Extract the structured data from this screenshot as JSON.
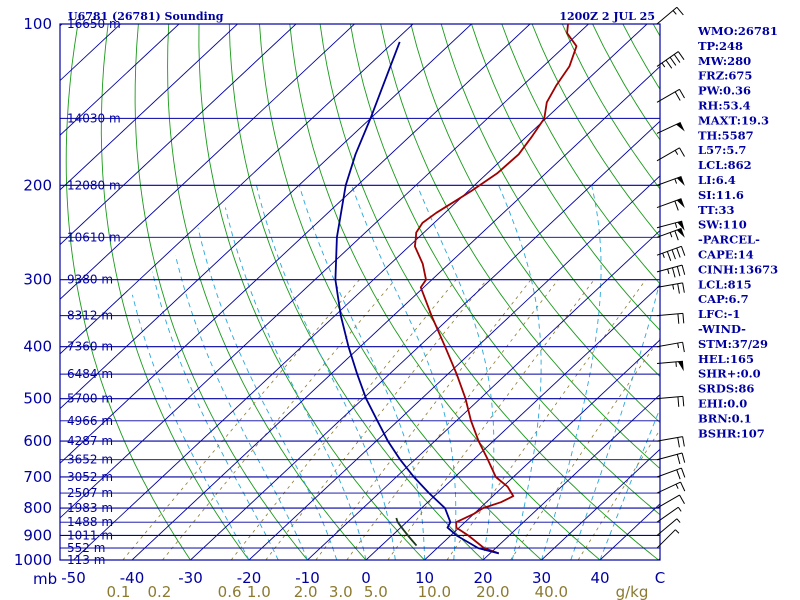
{
  "header": {
    "station": "U6781 (26781) Sounding",
    "time": "1200Z  2 JUL 25"
  },
  "chart_data": {
    "type": "line",
    "pressure_levels": [
      100,
      200,
      300,
      400,
      500,
      600,
      700,
      800,
      900,
      1000
    ],
    "pressure_labels": [
      "100",
      "200",
      "300",
      "400",
      "500",
      "600",
      "700",
      "800",
      "900",
      "1000"
    ],
    "pressure_axis_label": "mb",
    "temperature_ticks": [
      -50,
      -40,
      -30,
      -20,
      -10,
      0,
      10,
      20,
      30,
      40
    ],
    "temperature_tick_labels": [
      "-50",
      "-40",
      "-30",
      "-20",
      "-10",
      "0",
      "10",
      "20",
      "30",
      "40"
    ],
    "temperature_axis_end_label": "C",
    "mixing_ratio_labels": [
      {
        "text": "0.1",
        "t": -43
      },
      {
        "text": "0.2",
        "t": -36
      },
      {
        "text": "0.6",
        "t": -24
      },
      {
        "text": "1.0",
        "t": -19
      },
      {
        "text": "2.0",
        "t": -11
      },
      {
        "text": "3.0",
        "t": -5
      },
      {
        "text": "5.0",
        "t": 1
      },
      {
        "text": "10.0",
        "t": 11
      },
      {
        "text": "20.0",
        "t": 21
      },
      {
        "text": "40.0",
        "t": 31
      }
    ],
    "mixing_ratio_unit": "g/kg",
    "height_labels": [
      {
        "p": 100,
        "text": "16650 m"
      },
      {
        "p": 150,
        "text": "14030 m"
      },
      {
        "p": 200,
        "text": "12080 m"
      },
      {
        "p": 250,
        "text": "10610 m"
      },
      {
        "p": 300,
        "text": "9380 m"
      },
      {
        "p": 350,
        "text": "8312 m"
      },
      {
        "p": 400,
        "text": "7360 m"
      },
      {
        "p": 450,
        "text": "6484 m"
      },
      {
        "p": 500,
        "text": "5700 m"
      },
      {
        "p": 550,
        "text": "4966 m"
      },
      {
        "p": 600,
        "text": "4287 m"
      },
      {
        "p": 650,
        "text": "3652 m"
      },
      {
        "p": 700,
        "text": "3052 m"
      },
      {
        "p": 750,
        "text": "2507 m"
      },
      {
        "p": 800,
        "text": "1983 m"
      },
      {
        "p": 850,
        "text": "1488 m"
      },
      {
        "p": 900,
        "text": "1011 m"
      },
      {
        "p": 950,
        "text": "552 m"
      },
      {
        "p": 1000,
        "text": "113 m"
      }
    ],
    "series": [
      {
        "name": "",
        "color": "#a00000",
        "points": [
          [
            972,
            21.5
          ],
          [
            950,
            18.0
          ],
          [
            900,
            13.0
          ],
          [
            870,
            9.5
          ],
          [
            850,
            8.5
          ],
          [
            820,
            10.0
          ],
          [
            800,
            10.5
          ],
          [
            780,
            12.5
          ],
          [
            760,
            13.5
          ],
          [
            730,
            10.8
          ],
          [
            700,
            7.0
          ],
          [
            650,
            2.5
          ],
          [
            600,
            -2.5
          ],
          [
            550,
            -7.5
          ],
          [
            500,
            -12.5
          ],
          [
            450,
            -18.5
          ],
          [
            400,
            -25.5
          ],
          [
            350,
            -33.5
          ],
          [
            310,
            -40.5
          ],
          [
            300,
            -41.0
          ],
          [
            280,
            -44.5
          ],
          [
            260,
            -49.0
          ],
          [
            250,
            -50.5
          ],
          [
            245,
            -51.3
          ],
          [
            235,
            -52.0
          ],
          [
            225,
            -51.5
          ],
          [
            215,
            -50.5
          ],
          [
            205,
            -49.5
          ],
          [
            190,
            -48.3
          ],
          [
            175,
            -48.1
          ],
          [
            162,
            -49.1
          ],
          [
            150,
            -50.3
          ],
          [
            140,
            -52.8
          ],
          [
            130,
            -54.3
          ],
          [
            120,
            -55.5
          ],
          [
            110,
            -58.0
          ],
          [
            104,
            -62.0
          ],
          [
            100,
            -63.5
          ]
        ]
      },
      {
        "name": "",
        "color": "#000090",
        "points": [
          [
            972,
            21.5
          ],
          [
            950,
            17.0
          ],
          [
            900,
            11.0
          ],
          [
            870,
            8.0
          ],
          [
            850,
            7.5
          ],
          [
            800,
            4.0
          ],
          [
            750,
            -1.5
          ],
          [
            700,
            -7.0
          ],
          [
            650,
            -12.5
          ],
          [
            600,
            -18.0
          ],
          [
            550,
            -23.5
          ],
          [
            500,
            -29.5
          ],
          [
            450,
            -35.5
          ],
          [
            400,
            -42.0
          ],
          [
            350,
            -49.0
          ],
          [
            300,
            -56.5
          ],
          [
            250,
            -64.0
          ],
          [
            200,
            -72.0
          ],
          [
            175,
            -76.0
          ],
          [
            150,
            -80.0
          ],
          [
            125,
            -85.0
          ],
          [
            108,
            -89.0
          ]
        ]
      },
      {
        "name": "",
        "color": "#1a3a1a",
        "points": [
          [
            835,
            -2.5
          ],
          [
            850,
            -1.5
          ],
          [
            880,
            1.0
          ],
          [
            910,
            3.5
          ],
          [
            940,
            6.0
          ]
        ]
      }
    ],
    "wind_barbs": [
      {
        "p": 100,
        "dir": 230,
        "spd": 15
      },
      {
        "p": 120,
        "dir": 235,
        "spd": 45
      },
      {
        "p": 140,
        "dir": 240,
        "spd": 20
      },
      {
        "p": 160,
        "dir": 245,
        "spd": 50
      },
      {
        "p": 180,
        "dir": 240,
        "spd": 15
      },
      {
        "p": 200,
        "dir": 250,
        "spd": 55
      },
      {
        "p": 220,
        "dir": 250,
        "spd": 60
      },
      {
        "p": 240,
        "dir": 255,
        "spd": 55
      },
      {
        "p": 250,
        "dir": 250,
        "spd": 65
      },
      {
        "p": 270,
        "dir": 250,
        "spd": 45
      },
      {
        "p": 290,
        "dir": 255,
        "spd": 35
      },
      {
        "p": 310,
        "dir": 260,
        "spd": 25
      },
      {
        "p": 350,
        "dir": 265,
        "spd": 20
      },
      {
        "p": 400,
        "dir": 260,
        "spd": 15
      },
      {
        "p": 430,
        "dir": 265,
        "spd": 55
      },
      {
        "p": 500,
        "dir": 265,
        "spd": 20
      },
      {
        "p": 600,
        "dir": 260,
        "spd": 20
      },
      {
        "p": 650,
        "dir": 255,
        "spd": 20
      },
      {
        "p": 700,
        "dir": 250,
        "spd": 20
      },
      {
        "p": 750,
        "dir": 245,
        "spd": 15
      },
      {
        "p": 800,
        "dir": 240,
        "spd": 10
      },
      {
        "p": 850,
        "dir": 235,
        "spd": 5
      },
      {
        "p": 900,
        "dir": 230,
        "spd": 5
      },
      {
        "p": 950,
        "dir": 225,
        "spd": 5
      }
    ]
  },
  "indices": [
    "WMO:26781",
    "TP:248",
    "MW:280",
    "FRZ:675",
    "PW:0.36",
    "RH:53.4",
    "MAXT:19.3",
    "TH:5587",
    "L57:5.7",
    "LCL:862",
    "LI:6.4",
    "SI:11.6",
    "TT:33",
    "SW:110",
    "-PARCEL-",
    "CAPE:14",
    "CINH:13673",
    "LCL:815",
    "CAP:6.7",
    "LFC:-1",
    "-WIND-",
    "STM:37/29",
    "HEL:165",
    "SHR+:0.0",
    "SRDS:86",
    "EHI:0.0",
    "BRN:0.1",
    "BSHR:107"
  ],
  "colors": {
    "isobar": "#0000a0",
    "isotherm": "#0000a0",
    "dry_adiabat": "#1a9a1a",
    "moist_adiabat": "#2aa8d8",
    "mixing_ratio": "#8b7a30",
    "text": "#0000a0"
  }
}
